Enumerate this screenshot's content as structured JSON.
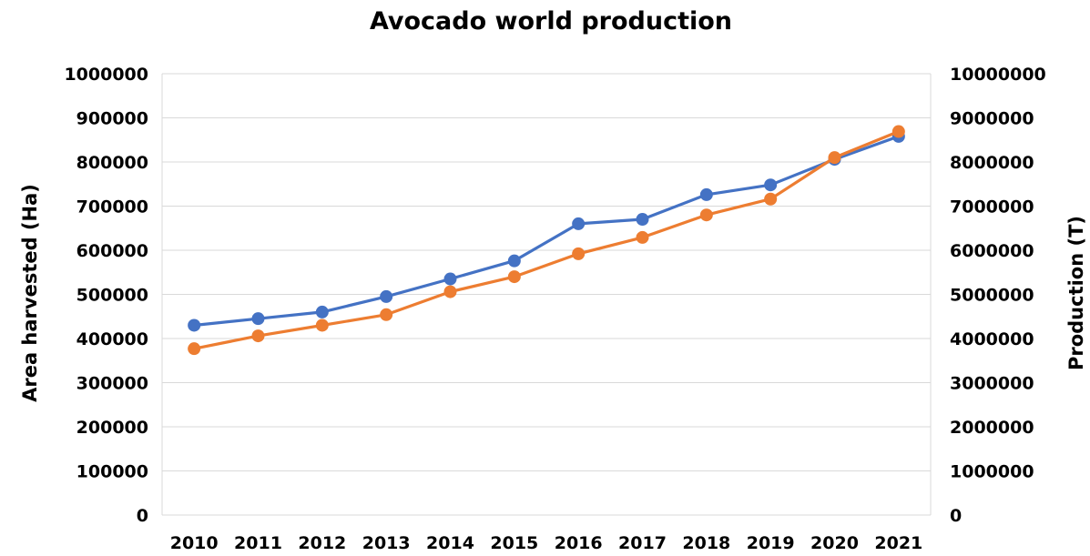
{
  "chart_data": {
    "type": "line",
    "title": "Avocado world production",
    "ylabel": "Area harvested (Ha)",
    "y2label": "Production (T)",
    "x": [
      "2010",
      "2011",
      "2012",
      "2013",
      "2014",
      "2015",
      "2016",
      "2017",
      "2018",
      "2019",
      "2020",
      "2021"
    ],
    "ylim": [
      0,
      1000000
    ],
    "y2lim": [
      0,
      10000000
    ],
    "yticks": [
      "0",
      "100000",
      "200000",
      "300000",
      "400000",
      "500000",
      "600000",
      "700000",
      "800000",
      "900000",
      "1000000"
    ],
    "y2ticks": [
      "0",
      "1000000",
      "2000000",
      "3000000",
      "4000000",
      "5000000",
      "6000000",
      "7000000",
      "8000000",
      "9000000",
      "10000000"
    ],
    "grid": true,
    "legend": "none",
    "series": [
      {
        "axis": "left",
        "color": "#4472C4",
        "values": [
          430000,
          445000,
          460000,
          495000,
          535000,
          576000,
          660000,
          670000,
          726000,
          748000,
          806000,
          858000
        ]
      },
      {
        "axis": "right",
        "color": "#ED7D31",
        "values": [
          3770000,
          4060000,
          4300000,
          4540000,
          5060000,
          5400000,
          5920000,
          6290000,
          6800000,
          7160000,
          8100000,
          8690000
        ]
      }
    ]
  }
}
